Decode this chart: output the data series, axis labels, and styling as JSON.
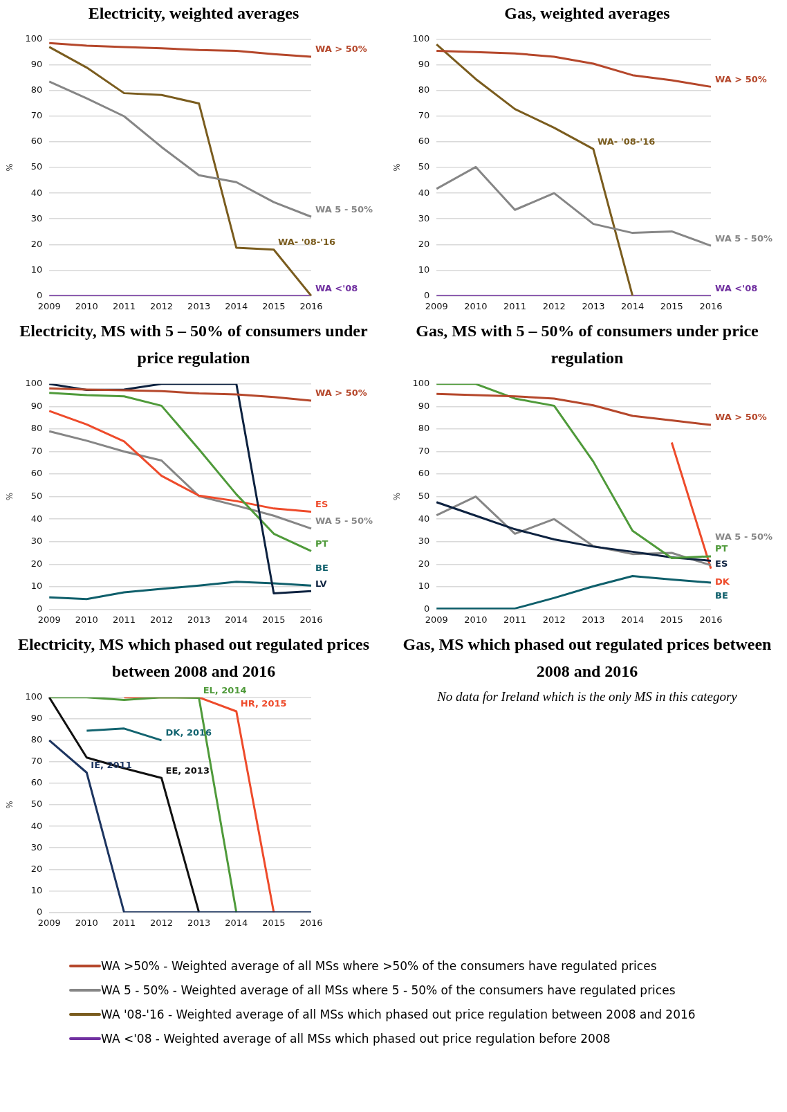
{
  "chart_data": [
    {
      "type": "line",
      "title": "Electricity, weighted averages",
      "ylabel": "%",
      "categories": [
        "2009",
        "2010",
        "2011",
        "2012",
        "2013",
        "2014",
        "2015",
        "2016"
      ],
      "ylim": [
        0,
        100
      ],
      "yticks": [
        0,
        10,
        20,
        30,
        40,
        50,
        60,
        70,
        80,
        90,
        100
      ],
      "grid": "y",
      "series": [
        {
          "name": "WA > 50%",
          "color": "#b5472b",
          "values": [
            98.5,
            97.5,
            97,
            96.5,
            95.8,
            95.5,
            94.2,
            93.2
          ]
        },
        {
          "name": "WA 5 - 50%",
          "color": "#868686",
          "values": [
            83.5,
            77,
            70,
            58,
            47,
            44.3,
            36.5,
            30.8
          ]
        },
        {
          "name": "WA- '08-'16",
          "color": "#7a5c1e",
          "values": [
            97,
            89,
            79,
            78.3,
            75,
            18.7,
            18,
            0
          ]
        },
        {
          "name": "WA <'08",
          "color": "#7030a0",
          "values": [
            0,
            0,
            0,
            0,
            0,
            0,
            0,
            0
          ]
        }
      ]
    },
    {
      "type": "line",
      "title": "Gas, weighted averages",
      "ylabel": "%",
      "categories": [
        "2009",
        "2010",
        "2011",
        "2012",
        "2013",
        "2014",
        "2015",
        "2016"
      ],
      "ylim": [
        0,
        100
      ],
      "yticks": [
        0,
        10,
        20,
        30,
        40,
        50,
        60,
        70,
        80,
        90,
        100
      ],
      "grid": "y",
      "series": [
        {
          "name": "WA > 50%",
          "color": "#b5472b",
          "values": [
            95.5,
            95,
            94.5,
            93.2,
            90.5,
            86,
            84,
            81.5
          ]
        },
        {
          "name": "WA 5 - 50%",
          "color": "#868686",
          "values": [
            41.7,
            50.2,
            33.5,
            40,
            28,
            24.5,
            25.1,
            19.5
          ]
        },
        {
          "name": "WA- '08-'16",
          "color": "#7a5c1e",
          "values": [
            98,
            84.5,
            72.8,
            65.5,
            57.2,
            0,
            null,
            null
          ]
        },
        {
          "name": "WA <'08",
          "color": "#7030a0",
          "values": [
            0,
            0,
            0,
            0,
            0,
            0,
            0,
            0
          ]
        }
      ]
    },
    {
      "type": "line",
      "title": "Electricity, MS with 5 – 50% of consumers under price regulation",
      "ylabel": "%",
      "categories": [
        "2009",
        "2010",
        "2011",
        "2012",
        "2013",
        "2014",
        "2015",
        "2016"
      ],
      "ylim": [
        0,
        100
      ],
      "yticks": [
        0,
        10,
        20,
        30,
        40,
        50,
        60,
        70,
        80,
        90,
        100
      ],
      "grid": "y",
      "series": [
        {
          "name": "WA > 50%",
          "color": "#b5472b",
          "values": [
            98,
            97.5,
            97.2,
            96.8,
            95.8,
            95.3,
            94.2,
            92.6
          ]
        },
        {
          "name": "LV",
          "color": "#0d2240",
          "values": [
            100,
            97.3,
            97.5,
            100,
            100,
            100,
            7,
            8
          ]
        },
        {
          "name": "PT",
          "color": "#4f9a3a",
          "values": [
            96,
            95,
            94.5,
            90.3,
            71,
            51,
            33.5,
            25.8
          ]
        },
        {
          "name": "ES",
          "color": "#ee4b2b",
          "values": [
            88,
            82,
            74.5,
            59.2,
            50.4,
            48,
            44.7,
            43.3
          ]
        },
        {
          "name": "WA 5 - 50%",
          "color": "#868686",
          "values": [
            79,
            74.8,
            70,
            66,
            50.2,
            46,
            41.5,
            35.8
          ]
        },
        {
          "name": "BE",
          "color": "#0f5f6b",
          "values": [
            5.3,
            4.5,
            7.5,
            9,
            10.5,
            12.2,
            11.5,
            10.5
          ]
        }
      ]
    },
    {
      "type": "line",
      "title": "Gas, MS with 5 – 50% of consumers under price regulation",
      "ylabel": "%",
      "categories": [
        "2009",
        "2010",
        "2011",
        "2012",
        "2013",
        "2014",
        "2015",
        "2016"
      ],
      "ylim": [
        0,
        100
      ],
      "yticks": [
        0,
        10,
        20,
        30,
        40,
        50,
        60,
        70,
        80,
        90,
        100
      ],
      "grid": "y",
      "series": [
        {
          "name": "WA > 50%",
          "color": "#b5472b",
          "values": [
            95.6,
            95,
            94.5,
            93.5,
            90.5,
            85.8,
            83.8,
            81.8
          ]
        },
        {
          "name": "PT",
          "color": "#4f9a3a",
          "values": [
            100,
            100,
            93.5,
            90.3,
            65.5,
            34.8,
            22.7,
            23.5
          ]
        },
        {
          "name": "ES",
          "color": "#0d2240",
          "values": [
            47.5,
            41.5,
            35.5,
            31,
            27.8,
            25.5,
            23,
            21.5
          ]
        },
        {
          "name": "WA 5 - 50%",
          "color": "#868686",
          "values": [
            41.7,
            50,
            33.5,
            40,
            28,
            24.5,
            25,
            19.5
          ]
        },
        {
          "name": "DK",
          "color": "#ee4b2b",
          "values": [
            null,
            null,
            null,
            null,
            null,
            null,
            74,
            18
          ]
        },
        {
          "name": "BE",
          "color": "#0f5f6b",
          "values": [
            0.3,
            0.3,
            0.3,
            5,
            10.2,
            14.7,
            13.2,
            11.8
          ]
        }
      ]
    },
    {
      "type": "line",
      "title": "Electricity, MS which phased out regulated prices between 2008 and 2016",
      "ylabel": "%",
      "categories": [
        "2009",
        "2010",
        "2011",
        "2012",
        "2013",
        "2014",
        "2015",
        "2016"
      ],
      "ylim": [
        0,
        100
      ],
      "yticks": [
        0,
        10,
        20,
        30,
        40,
        50,
        60,
        70,
        80,
        90,
        100
      ],
      "grid": "y",
      "series": [
        {
          "name": "IE, 2011",
          "color": "#1d3560",
          "values": [
            80,
            65,
            0,
            0,
            0,
            0,
            0,
            0
          ]
        },
        {
          "name": "EE, 2013",
          "color": "#111111",
          "values": [
            100,
            72,
            67,
            62.5,
            0,
            null,
            null,
            null
          ]
        },
        {
          "name": "EL, 2014",
          "color": "#4f9a3a",
          "values": [
            100,
            100,
            98.8,
            100,
            99.8,
            0,
            null,
            null
          ]
        },
        {
          "name": "HR, 2015",
          "color": "#ee4b2b",
          "values": [
            null,
            null,
            100,
            100,
            100,
            93.5,
            0,
            null
          ]
        },
        {
          "name": "DK, 2016",
          "color": "#136470",
          "values": [
            null,
            84.5,
            85.5,
            80,
            null,
            null,
            null,
            null
          ]
        }
      ]
    },
    {
      "type": "other",
      "title": "Gas, MS which phased out regulated prices between 2008 and 2016",
      "annotations": [
        "No data for Ireland which is the only MS in this category"
      ]
    },
    {
      "type": "other",
      "annotations": [
        "WA >50% - Weighted average of all MSs where >50% of the consumers have regulated prices",
        "WA 5 - 50% - Weighted average of all MSs where 5 - 50% of the consumers have regulated prices",
        "WA '08-'16 - Weighted average of all MSs which phased out price regulation between 2008 and 2016",
        "WA <'08 - Weighted average of all MSs which phased out price regulation before 2008"
      ],
      "colors": [
        "#b5472b",
        "#868686",
        "#7a5c1e",
        "#7030a0"
      ]
    }
  ]
}
